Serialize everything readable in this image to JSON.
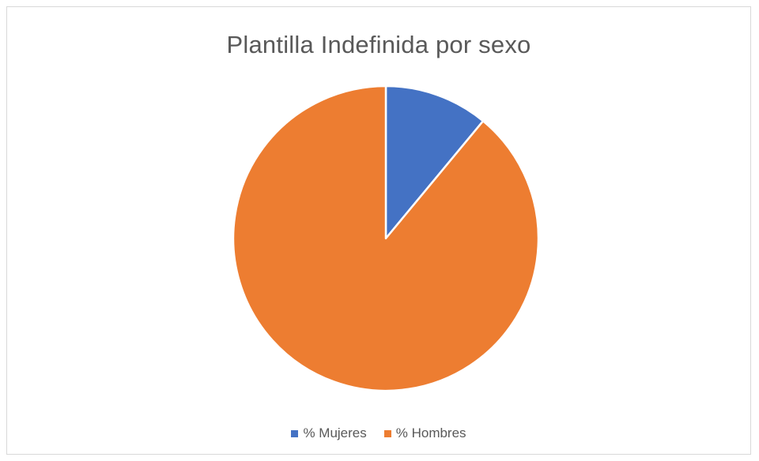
{
  "chart_data": {
    "type": "pie",
    "title": "Plantilla Indefinida por sexo",
    "categories": [
      "% Mujeres",
      "% Hombres"
    ],
    "values": [
      11,
      89
    ],
    "colors": [
      "#4472c4",
      "#ed7d31"
    ],
    "legend_position": "bottom",
    "start_angle": "top",
    "direction": "clockwise"
  }
}
